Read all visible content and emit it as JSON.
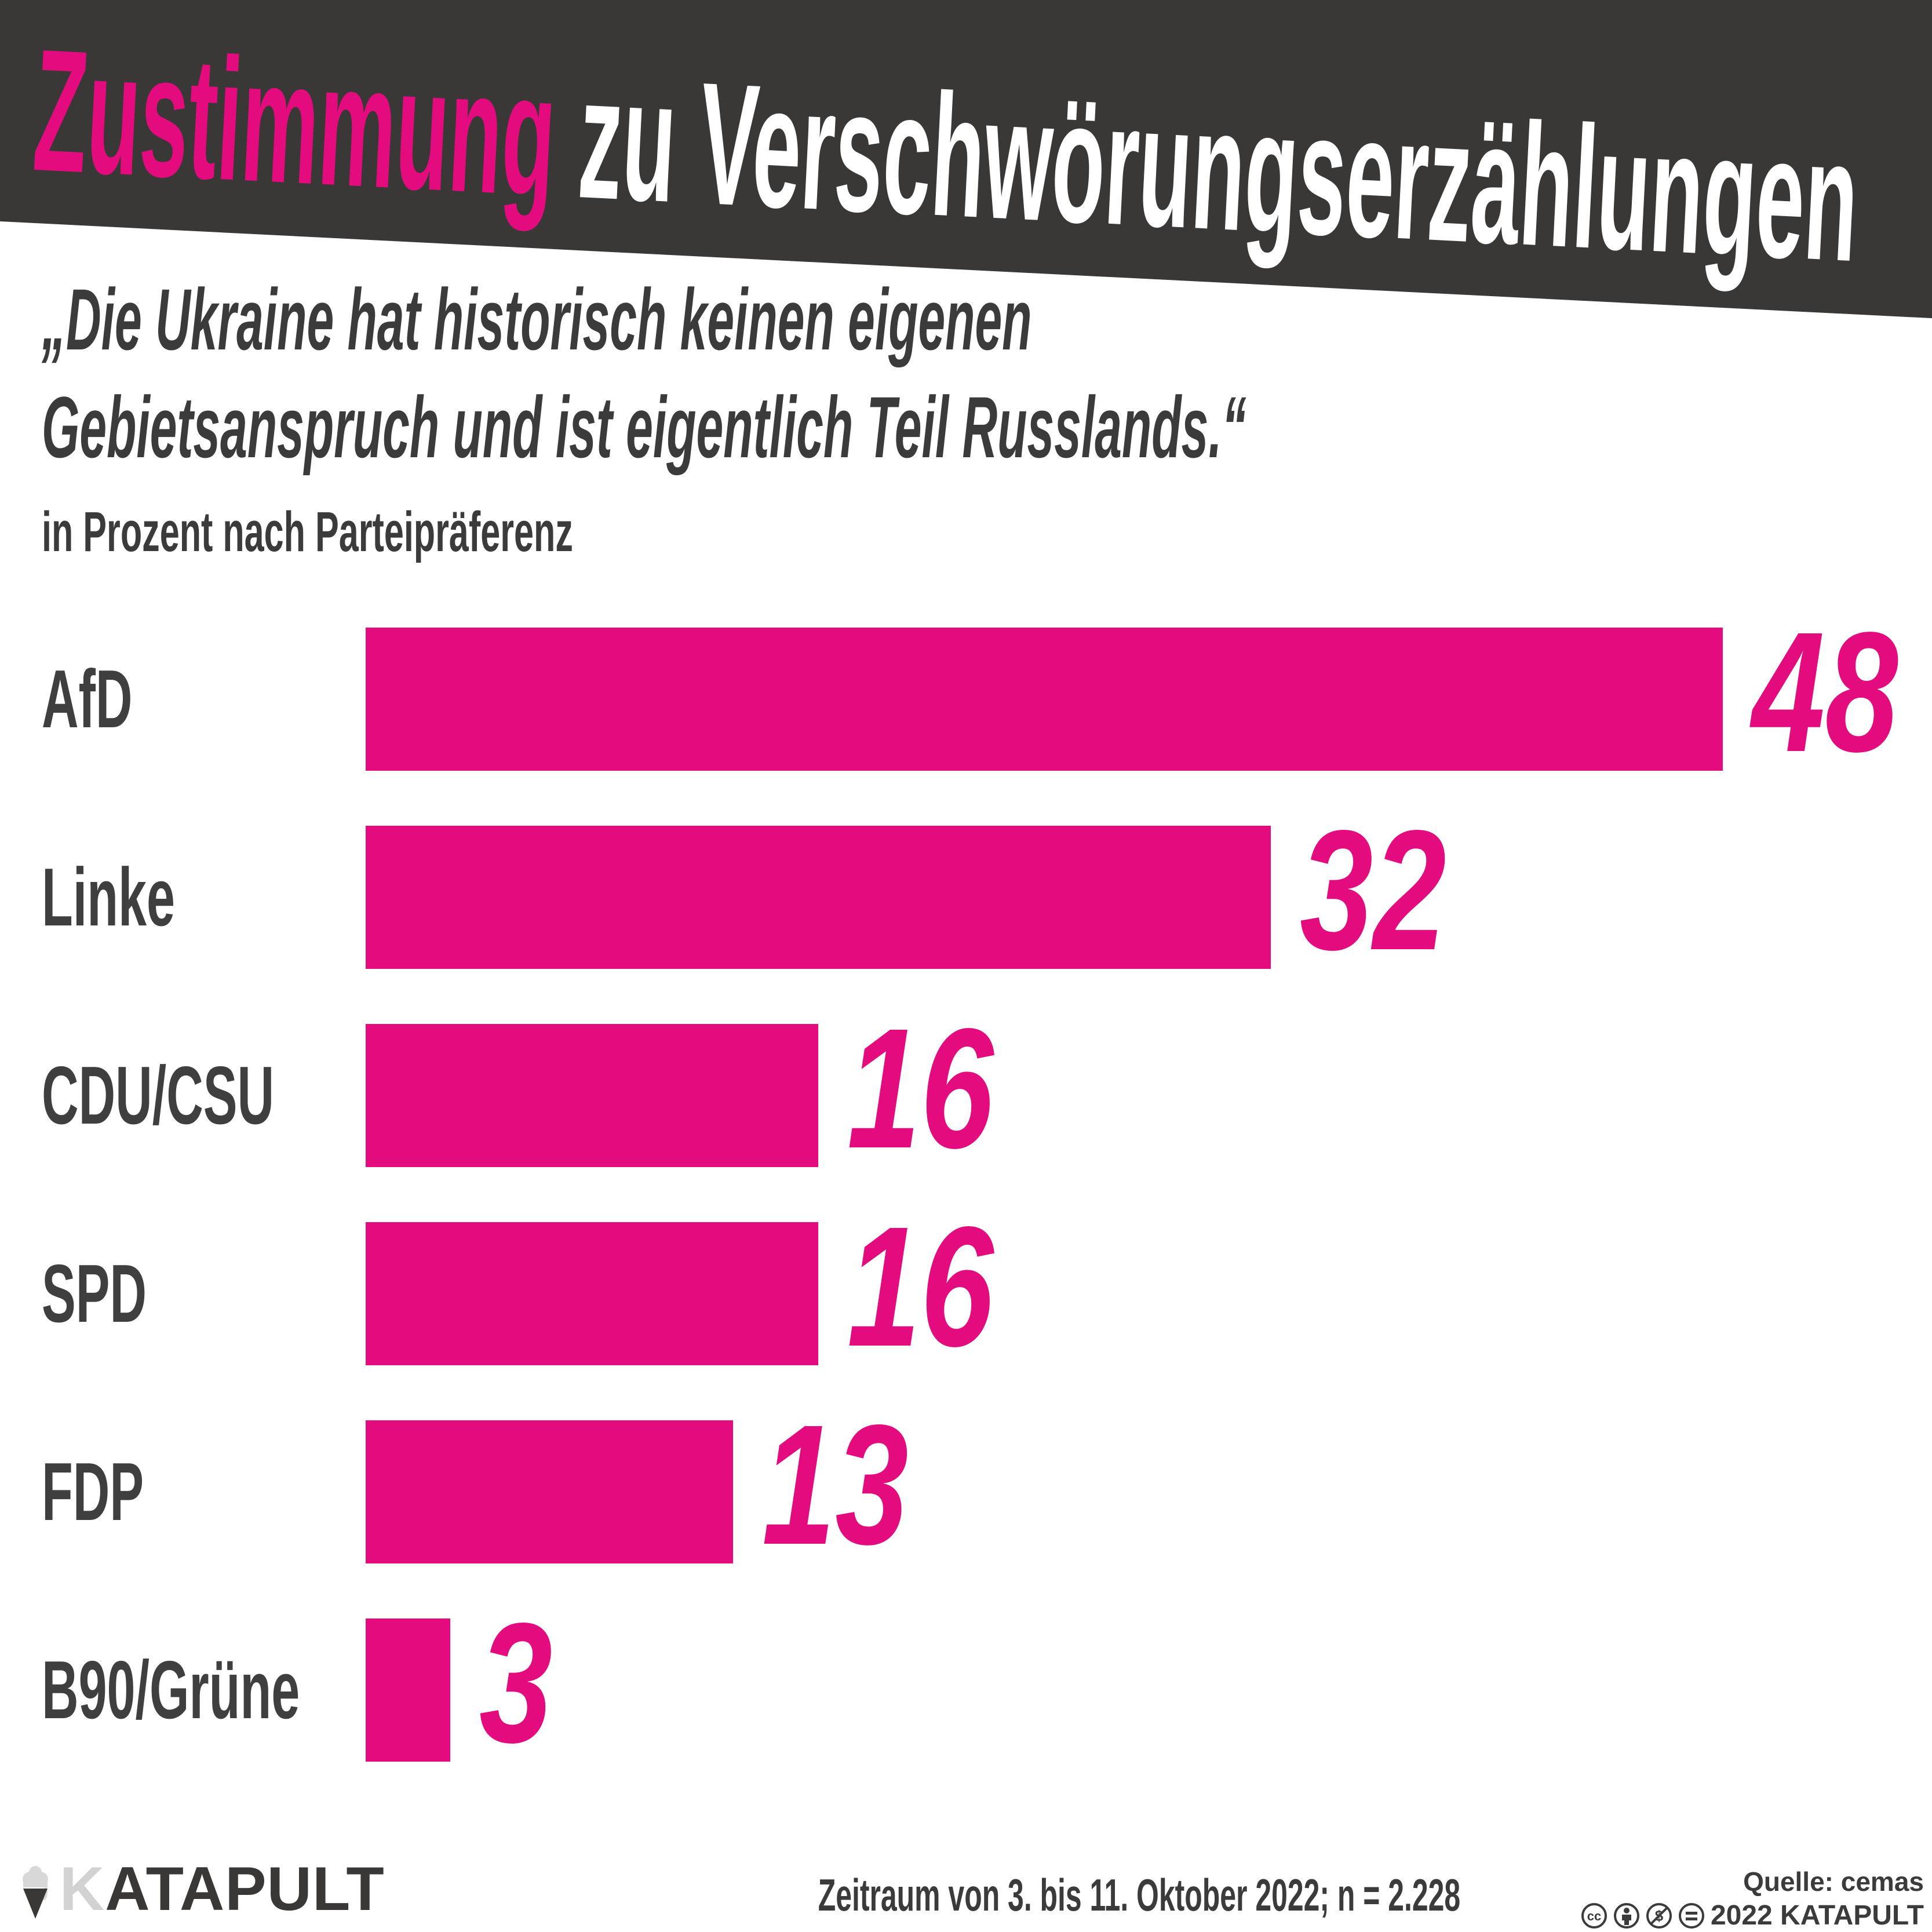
{
  "banner": {
    "accent": "Zustimmung",
    "rest": "zu Verschwörungserzählungen",
    "background_color": "#3a3837",
    "accent_color": "#e30b7d",
    "text_color": "#ffffff"
  },
  "quote": {
    "line1": "„Die Ukraine hat historisch keinen eigenen",
    "line2": "Gebietsanspruch und ist eigentlich Teil Russlands.“"
  },
  "subtitle": "in Prozent nach Parteipräferenz",
  "chart_data": {
    "type": "bar",
    "orientation": "horizontal",
    "title": "„Die Ukraine hat historisch keinen eigenen Gebietsanspruch und ist eigentlich Teil Russlands.“",
    "subtitle": "in Prozent nach Parteipräferenz",
    "unit": "Prozent",
    "categories": [
      "AfD",
      "Linke",
      "CDU/CSU",
      "SPD",
      "FDP",
      "B90/Grüne"
    ],
    "values": [
      48,
      32,
      16,
      16,
      13,
      3
    ],
    "value_labels": true,
    "xlim": [
      0,
      55
    ],
    "grid": false,
    "legend": false,
    "bar_color": "#e30b7d"
  },
  "footer": {
    "logo_k": "K",
    "logo_rest": "ATAPULT",
    "period": "Zeitraum von 3. bis 11. Oktober 2022; n = 2.228",
    "source": "Quelle: cemas",
    "license": "2022 KATAPULT",
    "license_icons": [
      "cc",
      "by",
      "nc",
      "nd"
    ]
  },
  "colors": {
    "pink": "#e30b7d",
    "dark": "#3a3837",
    "text": "#3b3b3b",
    "logo_gray": "#d2d2d2"
  }
}
